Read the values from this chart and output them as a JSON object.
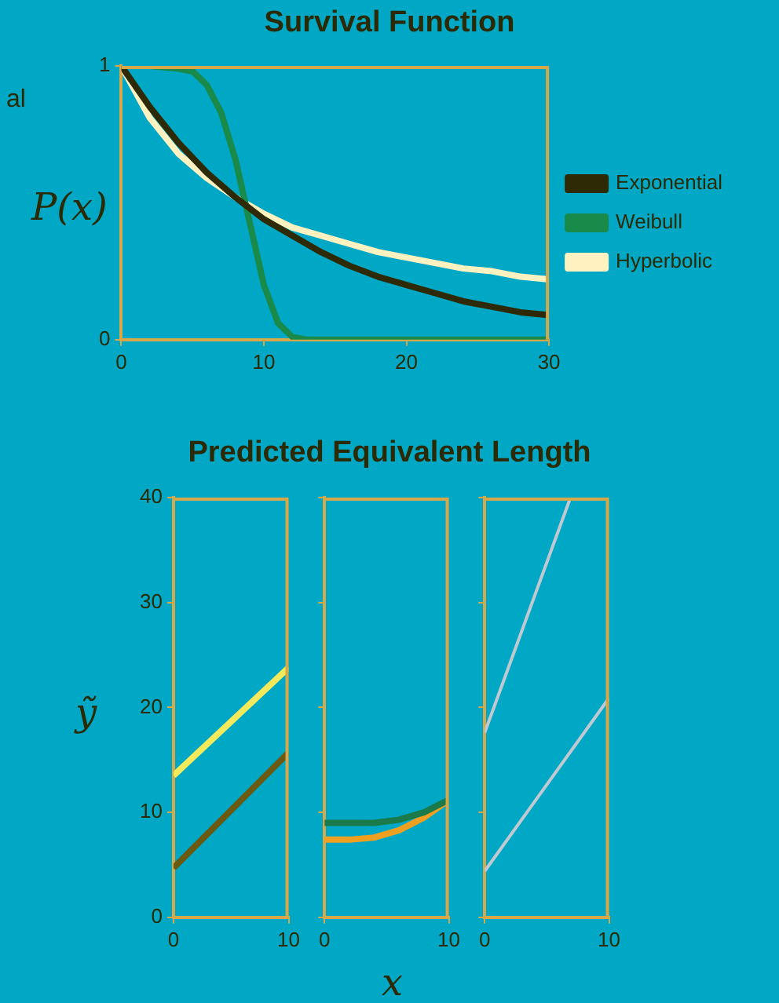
{
  "chart_data": [
    {
      "type": "line",
      "title": "Survival Function",
      "ylabel": "P(x)",
      "annotations": [
        "al"
      ],
      "xlim": [
        0,
        30
      ],
      "xticks": [
        0,
        10,
        20,
        30
      ],
      "ylim": [
        0,
        1
      ],
      "yticks": [
        0,
        1
      ],
      "grid": false,
      "legend": "right",
      "marker": "none",
      "series": [
        {
          "name": "Exponential",
          "color": "#2e2a05",
          "x": [
            0,
            2,
            4,
            6,
            8,
            10,
            12,
            14,
            16,
            18,
            20,
            22,
            24,
            26,
            28,
            30
          ],
          "values": [
            1,
            0.85,
            0.72,
            0.61,
            0.52,
            0.44,
            0.38,
            0.32,
            0.27,
            0.23,
            0.2,
            0.17,
            0.14,
            0.12,
            0.1,
            0.09
          ]
        },
        {
          "name": "Weibull",
          "color": "#1a8a4a",
          "x": [
            0,
            2,
            4,
            5,
            6,
            7,
            8,
            9,
            10,
            11,
            12,
            13,
            30
          ],
          "values": [
            1,
            1,
            0.99,
            0.98,
            0.93,
            0.83,
            0.66,
            0.43,
            0.2,
            0.06,
            0.01,
            0,
            0
          ]
        },
        {
          "name": "Hyperbolic",
          "color": "#fff2c0",
          "x": [
            0,
            2,
            4,
            6,
            8,
            10,
            12,
            14,
            16,
            18,
            20,
            22,
            24,
            26,
            28,
            30
          ],
          "values": [
            1,
            0.81,
            0.68,
            0.59,
            0.52,
            0.46,
            0.41,
            0.38,
            0.35,
            0.32,
            0.3,
            0.28,
            0.26,
            0.25,
            0.23,
            0.22
          ]
        }
      ]
    },
    {
      "type": "line",
      "title": "Predicted Equivalent Length",
      "ylabel": "ỹ",
      "xlim": [
        0,
        10
      ],
      "xticks": [
        0,
        10
      ],
      "ylim": [
        0,
        40
      ],
      "yticks": [
        0,
        10,
        20,
        30,
        40
      ],
      "grid": false,
      "legend": false,
      "marker": "none",
      "series": [
        {
          "color": "#6b5a10",
          "x": [
            0,
            10
          ],
          "values": [
            4.7,
            15.7
          ]
        },
        {
          "color": "#f2ea5a",
          "x": [
            0,
            10
          ],
          "values": [
            13.5,
            23.8
          ]
        }
      ]
    },
    {
      "type": "line",
      "xlabel": "x",
      "xlim": [
        0,
        10
      ],
      "xticks": [
        0,
        10
      ],
      "ylim": [
        0,
        40
      ],
      "yticks": [
        0,
        10,
        20,
        30,
        40
      ],
      "tick_labels": "x",
      "grid": false,
      "legend": false,
      "marker": "none",
      "series": [
        {
          "color": "#1a7a4a",
          "x": [
            0,
            2,
            4,
            6,
            8,
            10
          ],
          "values": [
            9,
            9,
            9,
            9.3,
            10,
            11.2
          ]
        },
        {
          "color": "#f0a020",
          "x": [
            0,
            2,
            4,
            6,
            8,
            10
          ],
          "values": [
            7.4,
            7.4,
            7.6,
            8.3,
            9.5,
            11.2
          ]
        }
      ]
    },
    {
      "type": "line",
      "xlim": [
        0,
        10
      ],
      "xticks": [
        0,
        10
      ],
      "ylim": [
        0,
        40
      ],
      "yticks": [
        0,
        10,
        20,
        30,
        40
      ],
      "tick_labels": "x",
      "grid": false,
      "legend": false,
      "marker": "none",
      "series": [
        {
          "color": "#c0c8d0",
          "x": [
            0,
            6.9
          ],
          "values": [
            17.6,
            40
          ]
        },
        {
          "color": "#c0c8d0",
          "x": [
            0,
            10
          ],
          "values": [
            4.4,
            20.9
          ]
        }
      ]
    }
  ]
}
